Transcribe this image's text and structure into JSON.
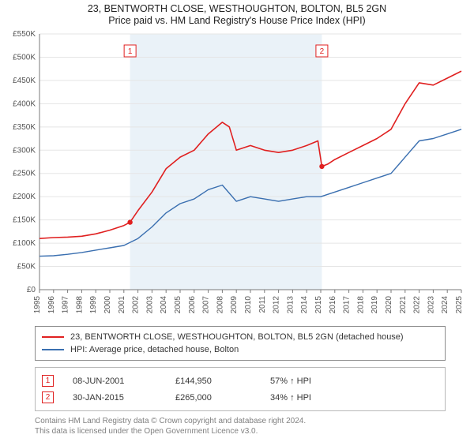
{
  "title_main": "23, BENTWORTH CLOSE, WESTHOUGHTON, BOLTON, BL5 2GN",
  "title_sub": "Price paid vs. HM Land Registry's House Price Index (HPI)",
  "chart": {
    "type": "line",
    "background_color": "#ffffff",
    "shaded_band_color": "#eaf2f8",
    "grid_color": "#e5e5e5",
    "axis_line_color": "#7a7a7a",
    "tick_label_color": "#545454",
    "ylim": [
      0,
      550
    ],
    "ytick_step": 50,
    "ytick_prefix": "£",
    "ytick_suffix": "K",
    "xlim": [
      1995,
      2025
    ],
    "xticks": [
      1995,
      1996,
      1997,
      1998,
      1999,
      2000,
      2001,
      2002,
      2003,
      2004,
      2005,
      2006,
      2007,
      2008,
      2009,
      2010,
      2011,
      2012,
      2013,
      2014,
      2015,
      2016,
      2017,
      2018,
      2019,
      2020,
      2021,
      2022,
      2023,
      2024,
      2025
    ],
    "shaded_band": {
      "x_start": 2001.44,
      "x_end": 2015.08
    },
    "series": [
      {
        "name": "property",
        "label": "23, BENTWORTH CLOSE, WESTHOUGHTON, BOLTON, BL5 2GN (detached house)",
        "color": "#e02020",
        "line_width": 1.6,
        "points": [
          [
            1995,
            110
          ],
          [
            1996,
            112
          ],
          [
            1997,
            113
          ],
          [
            1998,
            115
          ],
          [
            1999,
            120
          ],
          [
            2000,
            128
          ],
          [
            2001,
            138
          ],
          [
            2001.44,
            145
          ],
          [
            2002,
            170
          ],
          [
            2003,
            210
          ],
          [
            2004,
            260
          ],
          [
            2005,
            285
          ],
          [
            2006,
            300
          ],
          [
            2007,
            335
          ],
          [
            2008,
            360
          ],
          [
            2008.5,
            350
          ],
          [
            2009,
            300
          ],
          [
            2010,
            310
          ],
          [
            2011,
            300
          ],
          [
            2012,
            295
          ],
          [
            2013,
            300
          ],
          [
            2014,
            310
          ],
          [
            2014.8,
            320
          ],
          [
            2015.08,
            265
          ],
          [
            2015.5,
            270
          ],
          [
            2016,
            280
          ],
          [
            2017,
            295
          ],
          [
            2018,
            310
          ],
          [
            2019,
            325
          ],
          [
            2020,
            345
          ],
          [
            2021,
            400
          ],
          [
            2022,
            445
          ],
          [
            2023,
            440
          ],
          [
            2024,
            455
          ],
          [
            2025,
            470
          ]
        ]
      },
      {
        "name": "hpi",
        "label": "HPI: Average price, detached house, Bolton",
        "color": "#3a6fb0",
        "line_width": 1.4,
        "points": [
          [
            1995,
            72
          ],
          [
            1996,
            73
          ],
          [
            1997,
            76
          ],
          [
            1998,
            80
          ],
          [
            1999,
            85
          ],
          [
            2000,
            90
          ],
          [
            2001,
            95
          ],
          [
            2002,
            110
          ],
          [
            2003,
            135
          ],
          [
            2004,
            165
          ],
          [
            2005,
            185
          ],
          [
            2006,
            195
          ],
          [
            2007,
            215
          ],
          [
            2008,
            225
          ],
          [
            2009,
            190
          ],
          [
            2010,
            200
          ],
          [
            2011,
            195
          ],
          [
            2012,
            190
          ],
          [
            2013,
            195
          ],
          [
            2014,
            200
          ],
          [
            2015,
            200
          ],
          [
            2016,
            210
          ],
          [
            2017,
            220
          ],
          [
            2018,
            230
          ],
          [
            2019,
            240
          ],
          [
            2020,
            250
          ],
          [
            2021,
            285
          ],
          [
            2022,
            320
          ],
          [
            2023,
            325
          ],
          [
            2024,
            335
          ],
          [
            2025,
            345
          ]
        ]
      }
    ],
    "sale_markers": [
      {
        "n": "1",
        "x": 2001.44,
        "y": 145,
        "date": "08-JUN-2001",
        "price": "£144,950",
        "delta": "57% ↑ HPI"
      },
      {
        "n": "2",
        "x": 2015.08,
        "y": 265,
        "date": "30-JAN-2015",
        "price": "£265,000",
        "delta": "34% ↑ HPI"
      }
    ],
    "marker_style": {
      "dot_radius": 3.2,
      "dot_color": "#e02020",
      "badge_border_color": "#e02020",
      "badge_text_color": "#e02020",
      "badge_bg": "#ffffff",
      "badge_size": 15
    }
  },
  "legend": {
    "border_color": "#8c8c8c"
  },
  "footer_line1": "Contains HM Land Registry data © Crown copyright and database right 2024.",
  "footer_line2": "This data is licensed under the Open Government Licence v3.0."
}
